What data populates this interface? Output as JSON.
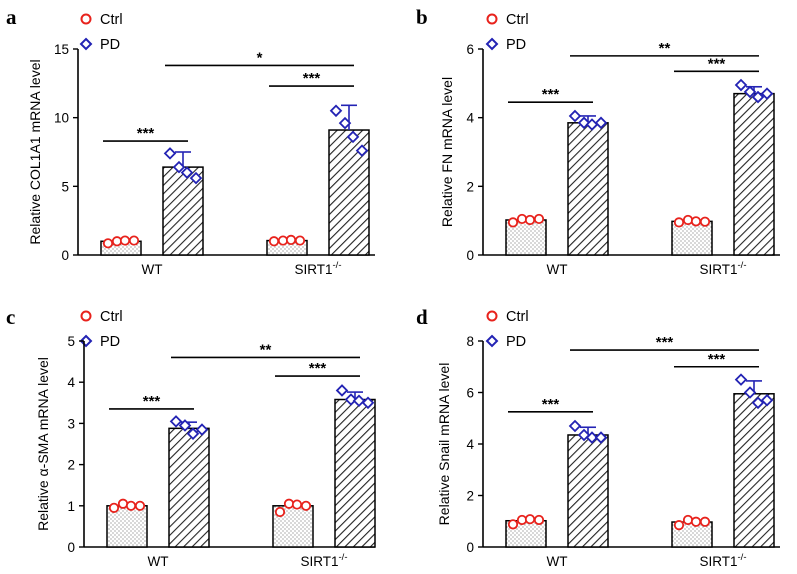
{
  "legend": {
    "ctrl": "Ctrl",
    "pd": "PD",
    "ctrl_color": "#e8221c",
    "pd_color": "#2323b4"
  },
  "chart_data": [
    {
      "panel": "a",
      "type": "bar",
      "ylabel": "Relative COL1A1 mRNA level",
      "categories": [
        "WT",
        "SIRT1"
      ],
      "category_superscript": [
        "",
        "-/-"
      ],
      "ylim": [
        0,
        15
      ],
      "yticks": [
        0,
        5,
        10,
        15
      ],
      "series": [
        {
          "name": "Ctrl",
          "values": [
            1.0,
            1.05
          ],
          "sd": [
            0.12,
            0.08
          ],
          "points": [
            [
              0.85,
              1.0,
              1.05,
              1.05
            ],
            [
              1.0,
              1.05,
              1.1,
              1.05
            ]
          ]
        },
        {
          "name": "PD",
          "values": [
            6.4,
            9.1
          ],
          "sd": [
            1.1,
            1.8
          ],
          "points": [
            [
              7.4,
              6.4,
              6.0,
              5.6
            ],
            [
              10.5,
              9.6,
              8.6,
              7.6
            ]
          ]
        }
      ],
      "significance": [
        {
          "label": "***",
          "from": "Ctrl WT",
          "to": "PD WT",
          "y": 8.3
        },
        {
          "label": "***",
          "from": "Ctrl SIRT1",
          "to": "PD SIRT1",
          "y": 12.3
        },
        {
          "label": "*",
          "from": "PD WT",
          "to": "PD SIRT1",
          "y": 13.8
        }
      ]
    },
    {
      "panel": "b",
      "type": "bar",
      "ylabel": "Relative FN mRNA level",
      "categories": [
        "WT",
        "SIRT1"
      ],
      "category_superscript": [
        "",
        "-/-"
      ],
      "ylim": [
        0,
        6
      ],
      "yticks": [
        0,
        2,
        4,
        6
      ],
      "series": [
        {
          "name": "Ctrl",
          "values": [
            1.02,
            0.98
          ],
          "sd": [
            0.05,
            0.05
          ],
          "points": [
            [
              0.95,
              1.05,
              1.02,
              1.05
            ],
            [
              0.95,
              1.02,
              0.98,
              0.97
            ]
          ]
        },
        {
          "name": "PD",
          "values": [
            3.85,
            4.7
          ],
          "sd": [
            0.2,
            0.2
          ],
          "points": [
            [
              4.05,
              3.85,
              3.8,
              3.85
            ],
            [
              4.95,
              4.75,
              4.6,
              4.7
            ]
          ]
        }
      ],
      "significance": [
        {
          "label": "***",
          "from": "Ctrl WT",
          "to": "PD WT",
          "y": 4.45
        },
        {
          "label": "***",
          "from": "Ctrl SIRT1",
          "to": "PD SIRT1",
          "y": 5.35
        },
        {
          "label": "**",
          "from": "PD WT",
          "to": "PD SIRT1",
          "y": 5.8
        }
      ]
    },
    {
      "panel": "c",
      "type": "bar",
      "ylabel": "Relative α-SMA mRNA level",
      "categories": [
        "WT",
        "SIRT1"
      ],
      "category_superscript": [
        "",
        "-/-"
      ],
      "ylim": [
        0,
        5
      ],
      "yticks": [
        0,
        1,
        2,
        3,
        4,
        5
      ],
      "series": [
        {
          "name": "Ctrl",
          "values": [
            1.0,
            1.0
          ],
          "sd": [
            0.05,
            0.08
          ],
          "points": [
            [
              0.95,
              1.05,
              1.0,
              1.0
            ],
            [
              0.85,
              1.05,
              1.03,
              1.0
            ]
          ]
        },
        {
          "name": "PD",
          "values": [
            2.88,
            3.58
          ],
          "sd": [
            0.15,
            0.18
          ],
          "points": [
            [
              3.05,
              2.95,
              2.75,
              2.85
            ],
            [
              3.8,
              3.58,
              3.55,
              3.5
            ]
          ]
        }
      ],
      "significance": [
        {
          "label": "***",
          "from": "Ctrl WT",
          "to": "PD WT",
          "y": 3.35
        },
        {
          "label": "***",
          "from": "Ctrl SIRT1",
          "to": "PD SIRT1",
          "y": 4.15
        },
        {
          "label": "**",
          "from": "PD WT",
          "to": "PD SIRT1",
          "y": 4.6
        }
      ]
    },
    {
      "panel": "d",
      "type": "bar",
      "ylabel": "Relative Snail mRNA level",
      "categories": [
        "WT",
        "SIRT1"
      ],
      "category_superscript": [
        "",
        "-/-"
      ],
      "ylim": [
        0,
        8
      ],
      "yticks": [
        0,
        2,
        4,
        6,
        8
      ],
      "series": [
        {
          "name": "Ctrl",
          "values": [
            1.02,
            0.97
          ],
          "sd": [
            0.08,
            0.08
          ],
          "points": [
            [
              0.88,
              1.05,
              1.08,
              1.05
            ],
            [
              0.85,
              1.05,
              0.98,
              0.98
            ]
          ]
        },
        {
          "name": "PD",
          "values": [
            4.35,
            5.95
          ],
          "sd": [
            0.3,
            0.5
          ],
          "points": [
            [
              4.7,
              4.35,
              4.25,
              4.25
            ],
            [
              6.5,
              6.0,
              5.6,
              5.7
            ]
          ]
        }
      ],
      "significance": [
        {
          "label": "***",
          "from": "Ctrl WT",
          "to": "PD WT",
          "y": 5.25
        },
        {
          "label": "***",
          "from": "Ctrl SIRT1",
          "to": "PD SIRT1",
          "y": 7.0
        },
        {
          "label": "***",
          "from": "PD WT",
          "to": "PD SIRT1",
          "y": 7.65
        }
      ]
    }
  ]
}
